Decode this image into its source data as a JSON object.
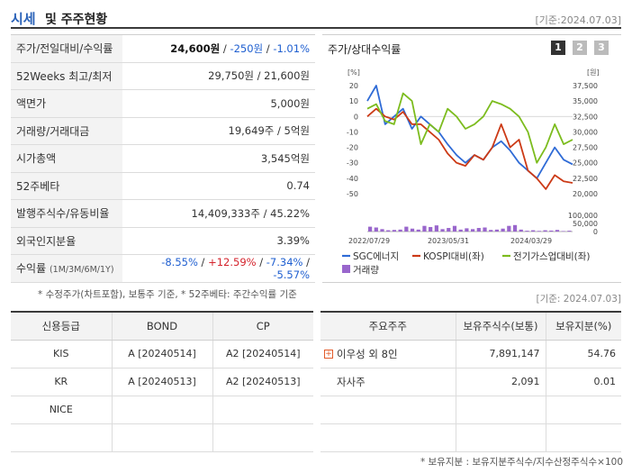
{
  "header": {
    "title_a": "시세",
    "title_b": "및 주주현황",
    "date": "[기준:2024.07.03]"
  },
  "stock": [
    {
      "label": "주가/전일대비/수익률",
      "price": "24,600원",
      "change": "-250원",
      "rate": "-1.01%"
    },
    {
      "label": "52Weeks 최고/최저",
      "value": "29,750원 / 21,600원"
    },
    {
      "label": "액면가",
      "value": "5,000원"
    },
    {
      "label": "거래량/거래대금",
      "value": "19,649주 / 5억원"
    },
    {
      "label": "시가총액",
      "value": "3,545억원"
    },
    {
      "label": "52주베타",
      "value": "0.74"
    },
    {
      "label": "발행주식수/유동비율",
      "value": "14,409,333주 / 45.22%"
    },
    {
      "label": "외국인지분율",
      "value": "3.39%"
    },
    {
      "label": "수익률",
      "label_sub": "(1M/3M/6M/1Y)",
      "r1": "-8.55%",
      "r2": "+12.59%",
      "r3": "-7.34%",
      "r4": "-5.57%"
    }
  ],
  "note_left": "* 수정주가(차트포함), 보통주 기준, * 52주베타: 주간수익률 기준",
  "note_right": "[기준: 2024.07.03]",
  "chart": {
    "title": "주가/상대수익률",
    "pages": [
      "1",
      "2",
      "3"
    ],
    "active_page": "1",
    "left_unit": "[%]",
    "right_unit": "[원]",
    "legend": [
      "SGC에너지",
      "KOSPI대비(좌)",
      "전기가스업대비(좌)",
      "거래량"
    ]
  },
  "chart_data": {
    "type": "line",
    "x_ticks": [
      "2022/07/29",
      "2023/05/31",
      "2024/03/29"
    ],
    "left_axis": {
      "ticks": [
        "20",
        "10",
        "0",
        "-10",
        "-20",
        "-30",
        "-40",
        "-50"
      ],
      "ylim": [
        -50,
        20
      ]
    },
    "right_axis": {
      "ticks": [
        "37,500",
        "35,000",
        "32,500",
        "30,000",
        "27,500",
        "25,000",
        "22,500",
        "20,000"
      ],
      "ylim": [
        20000,
        37500
      ]
    },
    "volume_axis": {
      "ticks": [
        "100,000",
        "50,000",
        "0"
      ],
      "ylim": [
        0,
        100000
      ]
    },
    "series": [
      {
        "name": "SGC에너지",
        "color": "#2f6bd6",
        "values": [
          10,
          20,
          -5,
          0,
          5,
          -8,
          0,
          -5,
          -10,
          -18,
          -25,
          -30,
          -25,
          -28,
          -20,
          -16,
          -22,
          -30,
          -35,
          -40,
          -30,
          -20,
          -28,
          -31
        ]
      },
      {
        "name": "KOSPI대비(좌)",
        "color": "#cc3a16",
        "values": [
          0,
          5,
          0,
          -2,
          3,
          -5,
          -5,
          -10,
          -15,
          -24,
          -30,
          -32,
          -25,
          -28,
          -20,
          -5,
          -20,
          -15,
          -35,
          -40,
          -47,
          -38,
          -42,
          -43
        ]
      },
      {
        "name": "전기가스업대비(좌)",
        "color": "#7cbc1e",
        "values": [
          5,
          8,
          -3,
          -5,
          15,
          10,
          -18,
          -5,
          -10,
          5,
          0,
          -8,
          -5,
          0,
          10,
          8,
          5,
          0,
          -10,
          -30,
          -20,
          -5,
          -18,
          -15
        ]
      }
    ],
    "volume": [
      30000,
      25000,
      15000,
      8000,
      10000,
      12000,
      30000,
      18000,
      12000,
      35000,
      28000,
      38000,
      15000,
      22000,
      35000,
      12000,
      20000,
      15000,
      22000,
      25000,
      10000,
      12000,
      18000,
      35000,
      40000,
      12000,
      5000,
      8000,
      4000,
      8000,
      6000,
      10000,
      3000,
      5000
    ]
  },
  "credit": {
    "headers": [
      "신용등급",
      "BOND",
      "CP"
    ],
    "rows": [
      [
        "KIS",
        "A [20240514]",
        "A2 [20240514]"
      ],
      [
        "KR",
        "A [20240513]",
        "A2 [20240513]"
      ],
      [
        "NICE",
        "",
        ""
      ],
      [
        "",
        "",
        ""
      ]
    ]
  },
  "holders": {
    "headers": [
      "주요주주",
      "보유주식수(보통)",
      "보유지분(%)"
    ],
    "rows": [
      {
        "name": "이우성 외 8인",
        "shares": "7,891,147",
        "pct": "54.76"
      },
      {
        "name": "자사주",
        "shares": "2,091",
        "pct": "0.01"
      },
      {
        "name": "",
        "shares": "",
        "pct": ""
      },
      {
        "name": "",
        "shares": "",
        "pct": ""
      }
    ]
  },
  "note_bottom": "* 보유지분 : 보유지분주식수/지수산정주식수×100"
}
